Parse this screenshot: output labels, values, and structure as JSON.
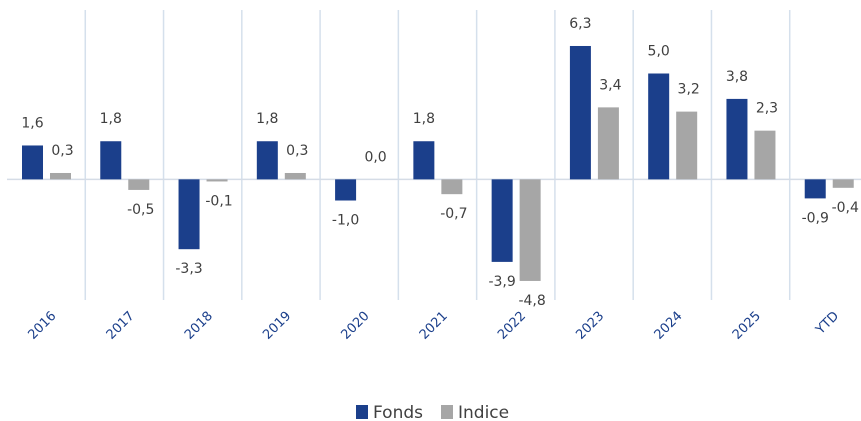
{
  "chart_data": {
    "type": "bar",
    "categories": [
      "2016",
      "2017",
      "2018",
      "2019",
      "2020",
      "2021",
      "2022",
      "2023",
      "2024",
      "2025",
      "YTD"
    ],
    "series": [
      {
        "name": "Fonds",
        "color": "#1b3f8b",
        "values": [
          1.6,
          1.8,
          -3.3,
          1.8,
          -1.0,
          1.8,
          -3.9,
          6.3,
          5.0,
          3.8,
          -0.9
        ],
        "value_labels": [
          "1,6",
          "1,8",
          "-3,3",
          "1,8",
          "-1,0",
          "1,8",
          "-3,9",
          "6,3",
          "5,0",
          "3,8",
          "-0,9"
        ]
      },
      {
        "name": "Indice",
        "color": "#a6a6a6",
        "values": [
          0.3,
          -0.5,
          -0.1,
          0.3,
          0.0,
          -0.7,
          -4.8,
          3.4,
          3.2,
          2.3,
          -0.4
        ],
        "value_labels": [
          "0,3",
          "-0,5",
          "-0,1",
          "0,3",
          "0,0",
          "-0,7",
          "-4,8",
          "3,4",
          "3,2",
          "2,3",
          "-0,4"
        ]
      }
    ],
    "ylim": [
      -5.7,
      8
    ],
    "grid": true,
    "legend": "bottom"
  }
}
